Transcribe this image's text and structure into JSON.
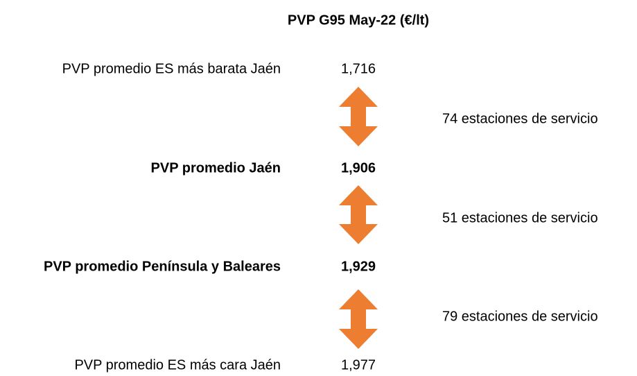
{
  "title": "PVP G95 May-22 (€/lt)",
  "rows": [
    {
      "label": "PVP promedio ES más barata Jaén",
      "value": "1,716"
    },
    {
      "label": "PVP promedio Jaén",
      "value": "1,906"
    },
    {
      "label": "PVP promedio Península y Baleares",
      "value": "1,929"
    },
    {
      "label": "PVP promedio ES más cara Jaén",
      "value": "1,977"
    }
  ],
  "gaps": [
    "74 estaciones de servicio",
    "51 estaciones de servicio",
    "79 estaciones de servicio"
  ]
}
